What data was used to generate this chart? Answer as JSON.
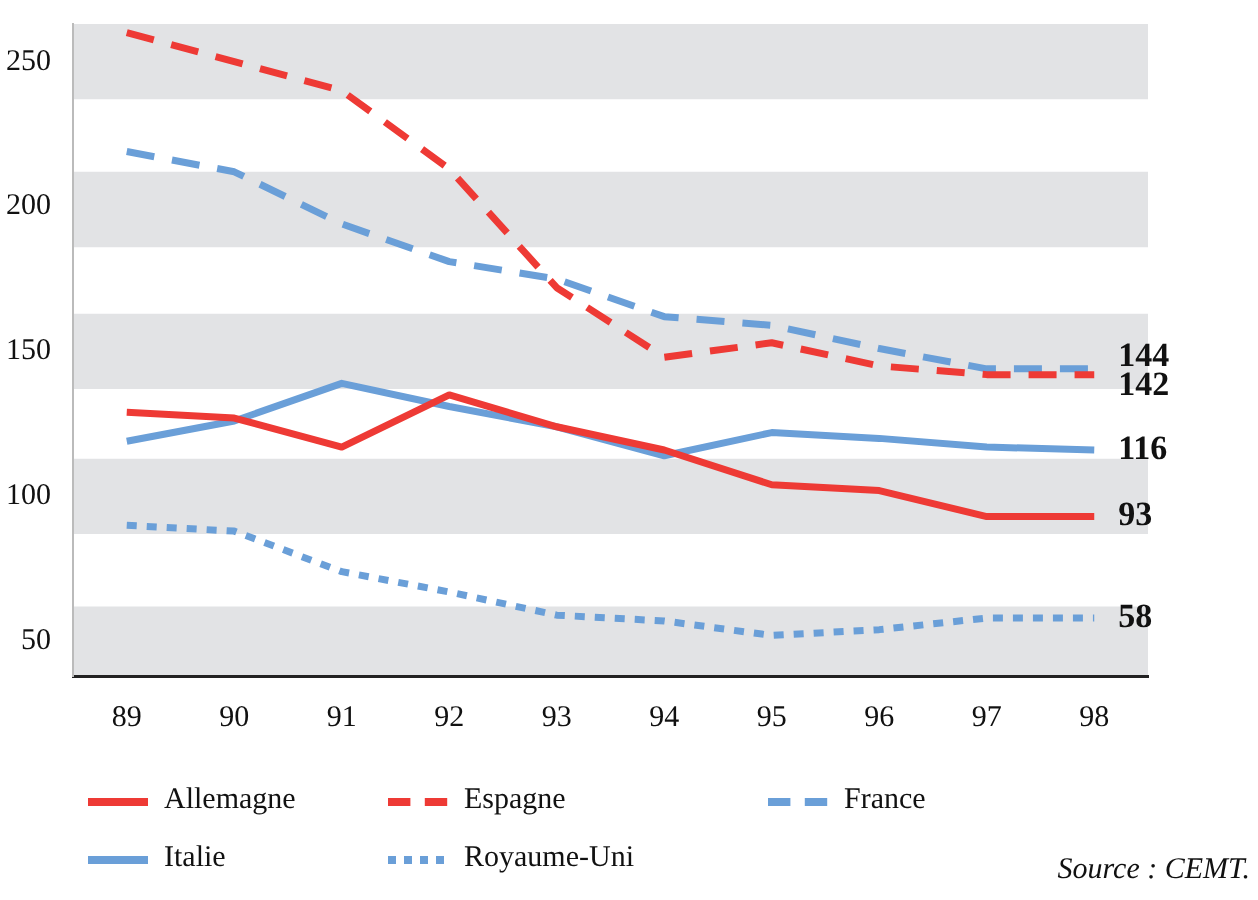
{
  "chart_data": {
    "type": "line",
    "categories": [
      "89",
      "90",
      "91",
      "92",
      "93",
      "94",
      "95",
      "96",
      "97",
      "98"
    ],
    "series": [
      {
        "name": "Allemagne",
        "color": "#ee3a35",
        "line_style": "solid",
        "values": [
          129,
          127,
          117,
          135,
          124,
          116,
          104,
          102,
          93,
          93
        ],
        "value_labels": [
          null,
          null,
          null,
          null,
          null,
          null,
          null,
          null,
          null,
          "93"
        ]
      },
      {
        "name": "Espagne",
        "color": "#ee3a35",
        "line_style": "dashed",
        "values": [
          260,
          250,
          240,
          213,
          172,
          148,
          153,
          145,
          142,
          142
        ],
        "value_labels": [
          null,
          null,
          null,
          null,
          null,
          null,
          null,
          null,
          null,
          "142"
        ]
      },
      {
        "name": "France",
        "color": "#6a9fd8",
        "line_style": "dashed",
        "values": [
          219,
          212,
          194,
          181,
          175,
          162,
          159,
          151,
          144,
          144
        ],
        "value_labels": [
          null,
          null,
          null,
          null,
          null,
          null,
          null,
          null,
          null,
          "144"
        ]
      },
      {
        "name": "Italie",
        "color": "#6a9fd8",
        "line_style": "solid",
        "values": [
          119,
          126,
          139,
          131,
          124,
          114,
          122,
          120,
          117,
          116
        ],
        "value_labels": [
          null,
          null,
          null,
          null,
          null,
          null,
          null,
          null,
          null,
          "116"
        ]
      },
      {
        "name": "Royaume-Uni",
        "color": "#6a9fd8",
        "line_style": "dotted",
        "values": [
          90,
          88,
          74,
          67,
          59,
          57,
          52,
          54,
          58,
          58
        ],
        "value_labels": [
          null,
          null,
          null,
          null,
          null,
          null,
          null,
          null,
          null,
          "58"
        ]
      }
    ],
    "ylim": [
      38,
      263
    ],
    "yticks": [
      50,
      100,
      150,
      200,
      250
    ],
    "bands": [
      {
        "axis": "y",
        "from": 237,
        "to": 263,
        "color": "#e2e3e5"
      },
      {
        "axis": "y",
        "from": 186,
        "to": 212,
        "color": "#e2e3e5"
      },
      {
        "axis": "y",
        "from": 137,
        "to": 163,
        "color": "#e2e3e5"
      },
      {
        "axis": "y",
        "from": 87,
        "to": 113,
        "color": "#e2e3e5"
      },
      {
        "axis": "y",
        "from": 38,
        "to": 62,
        "color": "#e2e3e5"
      }
    ],
    "legend": "bottom",
    "marker": "none",
    "annotations": [
      "Source : CEMT."
    ]
  }
}
